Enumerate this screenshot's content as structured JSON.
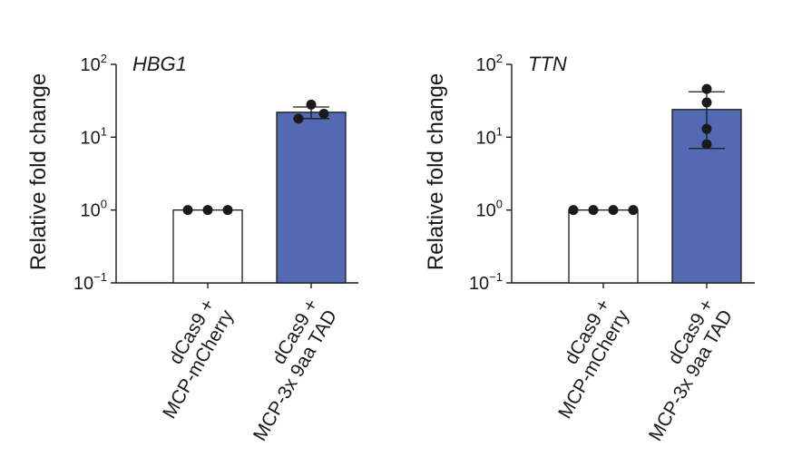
{
  "chart_data": [
    {
      "type": "bar",
      "title": "HBG1",
      "ylabel": "Relative fold change",
      "yscale": "log",
      "ylim": [
        0.1,
        100
      ],
      "yticks": [
        {
          "value": 0.1,
          "base": "10",
          "exp": "−1"
        },
        {
          "value": 1,
          "base": "10",
          "exp": "0"
        },
        {
          "value": 10,
          "base": "10",
          "exp": "1"
        },
        {
          "value": 100,
          "base": "10",
          "exp": "2"
        }
      ],
      "categories": [
        {
          "line1": "dCas9 +",
          "line2": "MCP-mCherry"
        },
        {
          "line1": "dCas9 +",
          "line2": "MCP-3x 9aa TAD"
        }
      ],
      "values": [
        1,
        22
      ],
      "error_upper": [
        1,
        26
      ],
      "error_lower": [
        1,
        18
      ],
      "points": [
        [
          1,
          1,
          1
        ],
        [
          18,
          28,
          21
        ]
      ],
      "bar_colors": [
        "#ffffff",
        "#5369b1"
      ]
    },
    {
      "type": "bar",
      "title": "TTN",
      "ylabel": "Relative fold change",
      "yscale": "log",
      "ylim": [
        0.1,
        100
      ],
      "yticks": [
        {
          "value": 0.1,
          "base": "10",
          "exp": "−1"
        },
        {
          "value": 1,
          "base": "10",
          "exp": "0"
        },
        {
          "value": 10,
          "base": "10",
          "exp": "1"
        },
        {
          "value": 100,
          "base": "10",
          "exp": "2"
        }
      ],
      "categories": [
        {
          "line1": "dCas9 +",
          "line2": "MCP-mCherry"
        },
        {
          "line1": "dCas9 +",
          "line2": "MCP-3x 9aa TAD"
        }
      ],
      "values": [
        1,
        24
      ],
      "error_upper": [
        1,
        42
      ],
      "error_lower": [
        1,
        7
      ],
      "points": [
        [
          1,
          1,
          1,
          1
        ],
        [
          8,
          13,
          30,
          46
        ]
      ],
      "bar_colors": [
        "#ffffff",
        "#5369b1"
      ]
    }
  ]
}
